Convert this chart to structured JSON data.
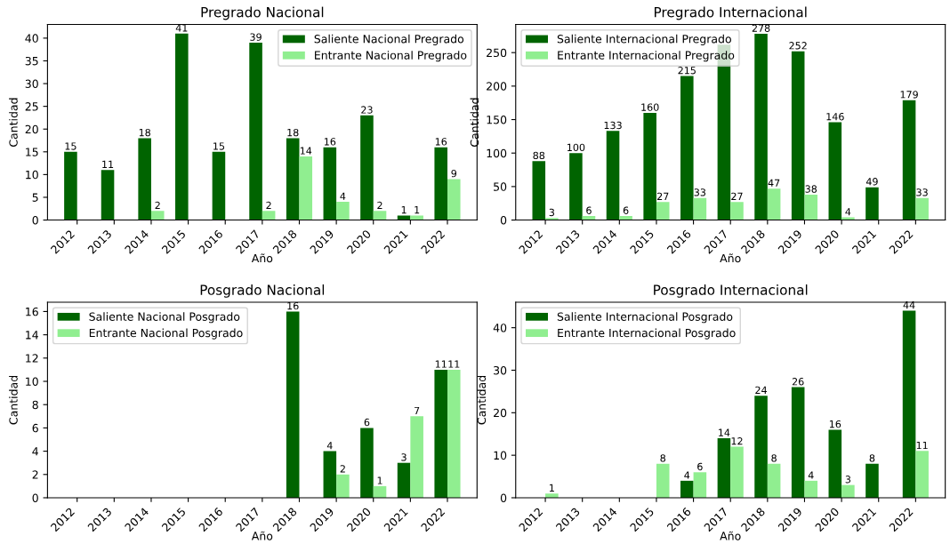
{
  "chart_data": [
    {
      "type": "bar",
      "title": "Pregrado Nacional",
      "xlabel": "Año",
      "ylabel": "Cantidad",
      "categories": [
        "2012",
        "2013",
        "2014",
        "2015",
        "2016",
        "2017",
        "2018",
        "2019",
        "2020",
        "2021",
        "2022"
      ],
      "ylim": [
        0,
        43
      ],
      "yticks": [
        0,
        5,
        10,
        15,
        20,
        25,
        30,
        35,
        40
      ],
      "legend": "top right",
      "grid": false,
      "series": [
        {
          "name": "Saliente Nacional Pregrado",
          "color": "#006400",
          "values": [
            15,
            11,
            18,
            41,
            15,
            39,
            18,
            16,
            23,
            1,
            16
          ],
          "value_labels": [
            "15",
            "11",
            "18",
            "41",
            "15",
            "39",
            "18",
            "16",
            "23",
            "1",
            "16"
          ]
        },
        {
          "name": "Entrante Nacional Pregrado",
          "color": "#90ee90",
          "values": [
            null,
            null,
            2,
            null,
            null,
            2,
            14,
            4,
            2,
            1,
            9
          ],
          "value_labels": [
            null,
            null,
            "2",
            null,
            null,
            "2",
            "14",
            "4",
            "2",
            "1",
            "9"
          ]
        }
      ]
    },
    {
      "type": "bar",
      "title": "Pregrado Internacional",
      "xlabel": "Año",
      "ylabel": "Cantidad",
      "categories": [
        "2012",
        "2013",
        "2014",
        "2015",
        "2016",
        "2017",
        "2018",
        "2019",
        "2020",
        "2021",
        "2022"
      ],
      "ylim": [
        0,
        292
      ],
      "yticks": [
        0,
        50,
        100,
        150,
        200,
        250
      ],
      "legend": "top left",
      "grid": false,
      "series": [
        {
          "name": "Saliente Internacional Pregrado",
          "color": "#006400",
          "values": [
            88,
            100,
            133,
            160,
            215,
            262,
            278,
            252,
            146,
            49,
            179
          ],
          "value_labels": [
            "88",
            "100",
            "133",
            "160",
            "215",
            null,
            "278",
            "252",
            "146",
            "49",
            "179"
          ]
        },
        {
          "name": "Entrante Internacional Pregrado",
          "color": "#90ee90",
          "values": [
            3,
            6,
            6,
            27,
            33,
            27,
            47,
            38,
            4,
            null,
            33
          ],
          "value_labels": [
            "3",
            "6",
            "6",
            "27",
            "33",
            "27",
            "47",
            "38",
            "4",
            null,
            "33"
          ]
        }
      ]
    },
    {
      "type": "bar",
      "title": "Posgrado Nacional",
      "xlabel": "Año",
      "ylabel": "Cantidad",
      "categories": [
        "2012",
        "2013",
        "2014",
        "2015",
        "2016",
        "2017",
        "2018",
        "2019",
        "2020",
        "2021",
        "2022"
      ],
      "ylim": [
        0,
        16.8
      ],
      "yticks": [
        0,
        2,
        4,
        6,
        8,
        10,
        12,
        14,
        16
      ],
      "legend": "top left",
      "grid": false,
      "series": [
        {
          "name": "Saliente Nacional Posgrado",
          "color": "#006400",
          "values": [
            null,
            null,
            null,
            null,
            null,
            null,
            16,
            4,
            6,
            3,
            11
          ],
          "value_labels": [
            null,
            null,
            null,
            null,
            null,
            null,
            "16",
            "4",
            "6",
            "3",
            "11"
          ]
        },
        {
          "name": "Entrante Nacional Posgrado",
          "color": "#90ee90",
          "values": [
            null,
            null,
            null,
            null,
            null,
            null,
            null,
            2,
            1,
            7,
            11
          ],
          "value_labels": [
            null,
            null,
            null,
            null,
            null,
            null,
            null,
            "2",
            "1",
            "7",
            "11"
          ]
        }
      ]
    },
    {
      "type": "bar",
      "title": "Posgrado Internacional",
      "xlabel": "Año",
      "ylabel": "Cantidad",
      "categories": [
        "2012",
        "2013",
        "2014",
        "2015",
        "2016",
        "2017",
        "2018",
        "2019",
        "2020",
        "2021",
        "2022"
      ],
      "ylim": [
        0,
        46
      ],
      "yticks": [
        0,
        10,
        20,
        30,
        40
      ],
      "legend": "top left",
      "grid": false,
      "series": [
        {
          "name": "Saliente Internacional Posgrado",
          "color": "#006400",
          "values": [
            null,
            null,
            null,
            null,
            4,
            14,
            24,
            26,
            16,
            8,
            44
          ],
          "value_labels": [
            null,
            null,
            null,
            null,
            "4",
            "14",
            "24",
            "26",
            "16",
            "8",
            "44"
          ]
        },
        {
          "name": "Entrante Internacional Posgrado",
          "color": "#90ee90",
          "values": [
            1,
            null,
            null,
            8,
            6,
            12,
            8,
            4,
            3,
            null,
            11
          ],
          "value_labels": [
            "1",
            null,
            null,
            "8",
            "6",
            "12",
            "8",
            "4",
            "3",
            null,
            "11"
          ]
        }
      ]
    }
  ]
}
